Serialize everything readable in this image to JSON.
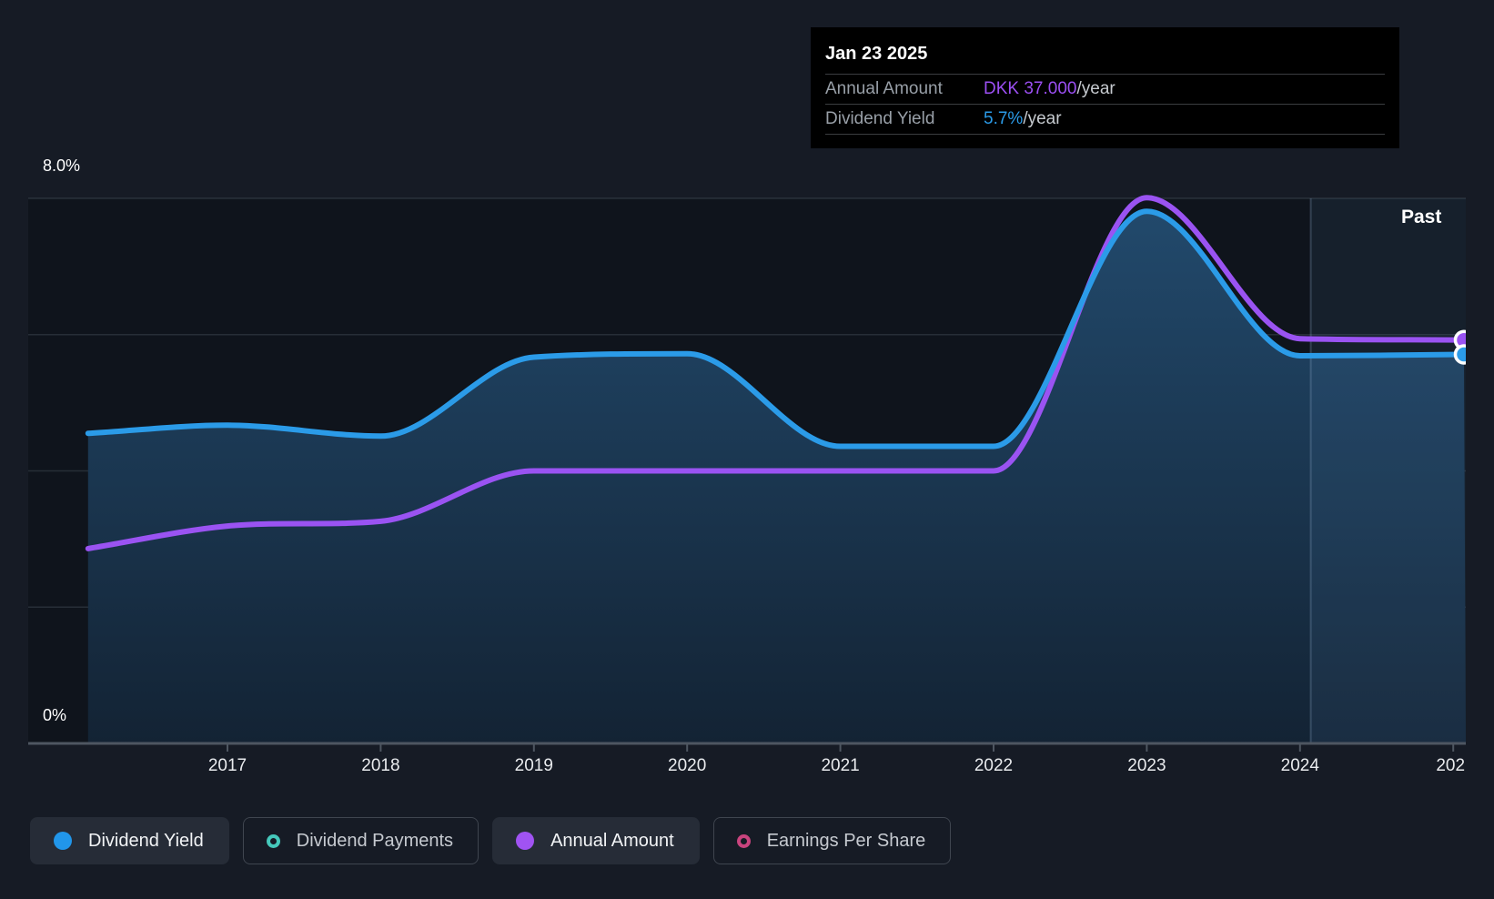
{
  "tooltip": {
    "date": "Jan 23 2025",
    "rows": [
      {
        "label": "Annual Amount",
        "value": "DKK 37.000",
        "suffix": "/year",
        "value_color": "#9b4ff2"
      },
      {
        "label": "Dividend Yield",
        "value": "5.7%",
        "suffix": "/year",
        "value_color": "#2b9be8"
      }
    ]
  },
  "chart_data": {
    "type": "line",
    "title": "Dividend history chart (yield % vs year)",
    "ylabel_top": "8.0%",
    "ylabel_bottom": "0%",
    "ylim": [
      0,
      8
    ],
    "grid_percent_lines": [
      8,
      6,
      4,
      2,
      0
    ],
    "past_label": "Past",
    "past_divider_year": 2024.07,
    "x_years": [
      2017,
      2018,
      2019,
      2020,
      2021,
      2022,
      2023,
      2024
    ],
    "x_partial_label": "202",
    "x_partial_year": 2025,
    "series": [
      {
        "name": "Annual Amount",
        "color": "#9a53f2",
        "unit": "yield-equivalent %",
        "area": false,
        "end_marker": true,
        "points": [
          {
            "x": 2016.09,
            "y": 2.86
          },
          {
            "x": 2017,
            "y": 3.19
          },
          {
            "x": 2018,
            "y": 3.26
          },
          {
            "x": 2019,
            "y": 4.0
          },
          {
            "x": 2020,
            "y": 4.0
          },
          {
            "x": 2021,
            "y": 4.0
          },
          {
            "x": 2022,
            "y": 4.0
          },
          {
            "x": 2023,
            "y": 8.01
          },
          {
            "x": 2024,
            "y": 5.94
          },
          {
            "x": 2025.07,
            "y": 5.92
          }
        ]
      },
      {
        "name": "Dividend Yield",
        "color": "#2b9be8",
        "unit": "%",
        "area": true,
        "end_marker": true,
        "points": [
          {
            "x": 2016.09,
            "y": 4.55
          },
          {
            "x": 2017,
            "y": 4.67
          },
          {
            "x": 2018,
            "y": 4.51
          },
          {
            "x": 2019,
            "y": 5.67
          },
          {
            "x": 2020,
            "y": 5.72
          },
          {
            "x": 2021,
            "y": 4.36
          },
          {
            "x": 2022,
            "y": 4.36
          },
          {
            "x": 2023,
            "y": 7.81
          },
          {
            "x": 2024,
            "y": 5.69
          },
          {
            "x": 2025.07,
            "y": 5.71
          }
        ]
      }
    ],
    "colors": {
      "background": "#161b25",
      "plot_background": "#0f141c",
      "grid": "rgba(170,184,200,0.16)",
      "axis": "#4e5661",
      "fill_top": "#224a6d",
      "fill_bottom": "#132334",
      "past_overlay": "rgba(96,158,210,0.09)",
      "divider": "rgba(140,170,200,0.28)",
      "marker_ring": "#ffffff"
    }
  },
  "legend": {
    "items": [
      {
        "label": "Dividend Yield",
        "color": "#2196ea",
        "style": "filled",
        "active": true
      },
      {
        "label": "Dividend Payments",
        "color": "#45c8bb",
        "style": "outline",
        "active": false
      },
      {
        "label": "Annual Amount",
        "color": "#a053f2",
        "style": "filled",
        "active": true
      },
      {
        "label": "Earnings Per Share",
        "color": "#c9447e",
        "style": "outline",
        "active": false
      }
    ]
  }
}
